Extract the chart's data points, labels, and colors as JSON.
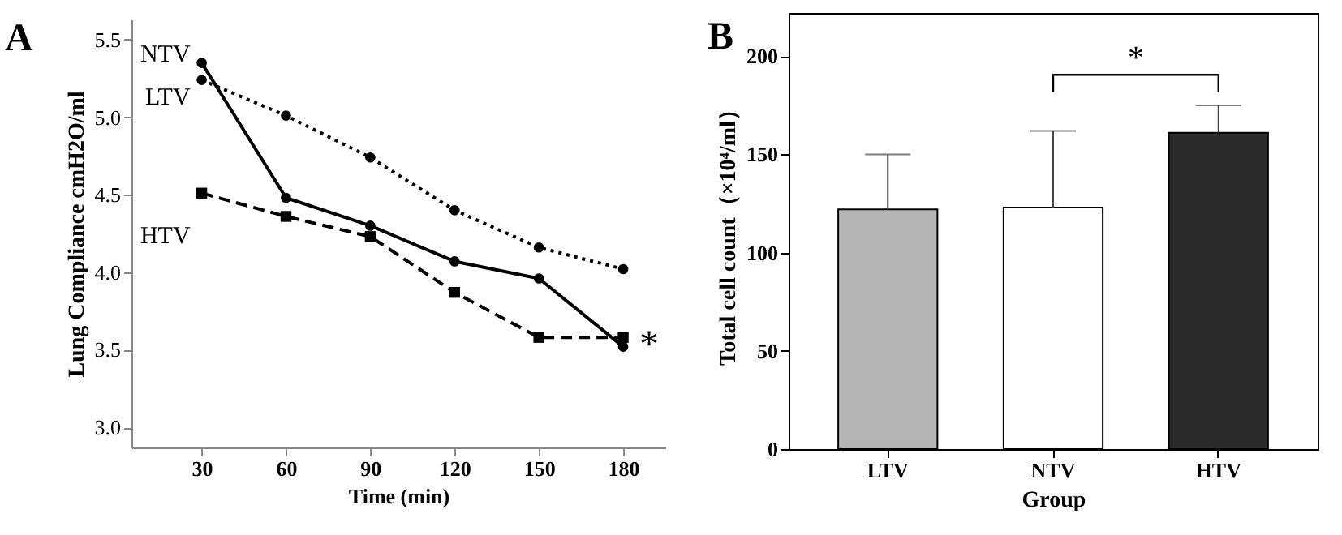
{
  "chart_data": [
    {
      "type": "line",
      "title": "A",
      "xlabel": "Time (min)",
      "ylabel": "Lung Compliance cmH2O/ml",
      "x": [
        30,
        60,
        90,
        120,
        150,
        180
      ],
      "xlim": [
        5,
        195
      ],
      "xticks": [
        30,
        60,
        90,
        120,
        150,
        180
      ],
      "ylim": [
        2.87,
        5.63
      ],
      "yticks": [
        {
          "value": 3,
          "label": "3.0"
        },
        {
          "value": 3.5,
          "label": "3.5"
        },
        {
          "value": 4,
          "label": "4.0"
        },
        {
          "value": 4.5,
          "label": "4.5"
        },
        {
          "value": 5,
          "label": "5.0"
        },
        {
          "value": 5.5,
          "label": "5.5"
        }
      ],
      "grid": false,
      "series": [
        {
          "name": "NTV",
          "color": "#000000",
          "values": [
            5.35,
            4.48,
            4.3,
            4.07,
            3.96,
            3.52
          ],
          "marker": "circle",
          "line_style": "solid"
        },
        {
          "name": "LTV",
          "color": "#000000",
          "values": [
            5.24,
            5.01,
            4.74,
            4.4,
            4.16,
            4.02
          ],
          "marker": "circle",
          "line_style": "dotted"
        },
        {
          "name": "HTV",
          "color": "#000000",
          "values": [
            4.51,
            4.36,
            4.23,
            3.87,
            3.58,
            3.58
          ],
          "marker": "square",
          "line_style": "dashed"
        }
      ],
      "annotations": [
        {
          "text": "*",
          "x": 180,
          "y": 3.58
        }
      ]
    },
    {
      "type": "bar",
      "title": "B",
      "xlabel": "Group",
      "ylabel": "Total cell count（×10⁴/ml）",
      "categories": [
        "LTV",
        "NTV",
        "HTV"
      ],
      "values": [
        122,
        123,
        161
      ],
      "colors": [
        "#b4b4b4",
        "#ffffff",
        "#2b2b2b"
      ],
      "errors": [
        [
          122,
          150
        ],
        [
          123,
          162
        ],
        [
          161,
          175
        ]
      ],
      "ylim": [
        0,
        222
      ],
      "yticks": [
        0,
        50,
        100,
        150,
        200
      ],
      "grid": false,
      "annotations": [
        "*"
      ]
    }
  ]
}
